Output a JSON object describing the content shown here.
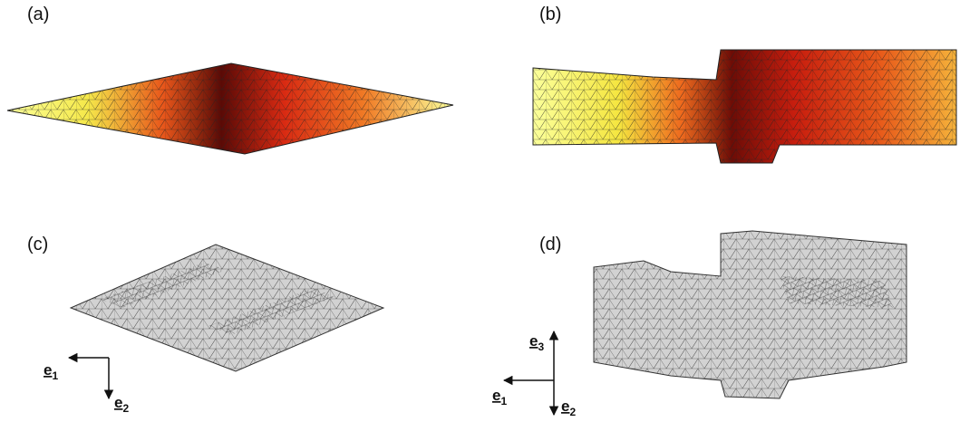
{
  "panels": [
    {
      "label": "(a)"
    },
    {
      "label": "(b)"
    },
    {
      "label": "(c)",
      "axes": [
        {
          "letter": "e",
          "index": "1"
        },
        {
          "letter": "e",
          "index": "2"
        }
      ]
    },
    {
      "label": "(d)",
      "axes": [
        {
          "letter": "e",
          "index": "3"
        },
        {
          "letter": "e",
          "index": "1"
        },
        {
          "letter": "e",
          "index": "2"
        }
      ]
    }
  ]
}
